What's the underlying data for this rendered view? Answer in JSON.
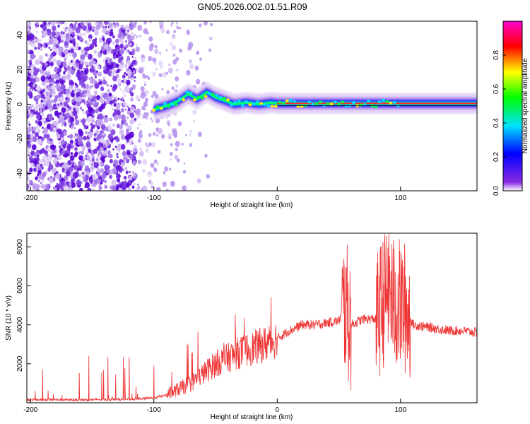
{
  "title": "GN05.2026.002.01.51.R09",
  "chart_data": [
    {
      "type": "heatmap",
      "xlabel": "Height of straight line (km)",
      "ylabel": "Frequency (Hz)",
      "xlim": [
        -203,
        162
      ],
      "ylim": [
        -50,
        48
      ],
      "xticks": [
        -200,
        -100,
        0,
        100
      ],
      "yticks": [
        -40,
        -20,
        0,
        20,
        40
      ],
      "colorbar": {
        "label": "Normalized spectral amplitude",
        "range": [
          0,
          1
        ],
        "ticks": [
          0.0,
          0.2,
          0.4,
          0.6,
          0.8
        ]
      },
      "ridge": [
        {
          "x": -100,
          "f": -3
        },
        {
          "x": -90,
          "f": -1
        },
        {
          "x": -80,
          "f": 2
        },
        {
          "x": -72,
          "f": 6
        },
        {
          "x": -65,
          "f": 3
        },
        {
          "x": -57,
          "f": 7
        },
        {
          "x": -50,
          "f": 4
        },
        {
          "x": -42,
          "f": 2
        },
        {
          "x": -35,
          "f": 0
        },
        {
          "x": -25,
          "f": 1
        },
        {
          "x": -15,
          "f": 0
        },
        {
          "x": -5,
          "f": 1
        },
        {
          "x": 0,
          "f": 0.5
        },
        {
          "x": 50,
          "f": 0.5
        },
        {
          "x": 100,
          "f": 0.5
        },
        {
          "x": 162,
          "f": 0.5
        }
      ]
    },
    {
      "type": "line",
      "xlabel": "Height of straight line (km)",
      "ylabel": "SNR (10 * v/v)",
      "xlim": [
        -203,
        162
      ],
      "ylim": [
        0,
        8700
      ],
      "xticks": [
        -200,
        -100,
        0,
        100
      ],
      "yticks": [
        2000,
        4000,
        6000,
        8000
      ],
      "series": [
        {
          "name": "SNR",
          "color": "#ee3333",
          "x": [
            -203,
            -180,
            -160,
            -140,
            -120,
            -100,
            -90,
            -80,
            -70,
            -60,
            -50,
            -40,
            -30,
            -20,
            -10,
            0,
            10,
            20,
            30,
            40,
            50,
            55,
            60,
            70,
            80,
            85,
            90,
            95,
            100,
            105,
            110,
            120,
            130,
            140,
            150,
            162
          ],
          "y": [
            150,
            160,
            150,
            170,
            180,
            250,
            400,
            700,
            1000,
            1500,
            2000,
            2300,
            2600,
            2800,
            3000,
            3300,
            3700,
            4000,
            4000,
            4100,
            4200,
            5000,
            4000,
            4300,
            4300,
            5000,
            6000,
            5000,
            5000,
            4800,
            4000,
            3900,
            3800,
            3700,
            3700,
            3600
          ]
        }
      ]
    }
  ]
}
